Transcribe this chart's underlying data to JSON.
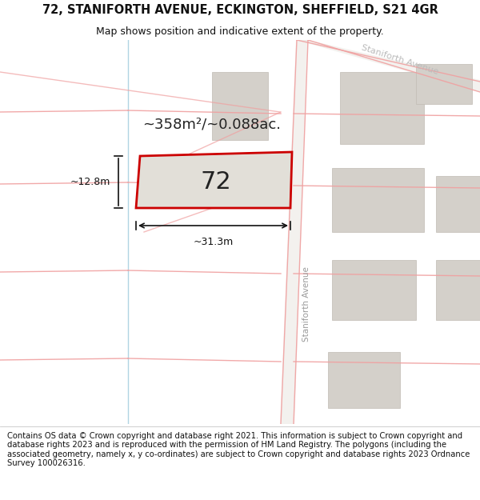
{
  "title": "72, STANIFORTH AVENUE, ECKINGTON, SHEFFIELD, S21 4GR",
  "subtitle": "Map shows position and indicative extent of the property.",
  "footer": "Contains OS data © Crown copyright and database right 2021. This information is subject to Crown copyright and database rights 2023 and is reproduced with the permission of HM Land Registry. The polygons (including the associated geometry, namely x, y co-ordinates) are subject to Crown copyright and database rights 2023 Ordnance Survey 100026316.",
  "area_text": "~358m²/~0.088ac.",
  "dim_width": "~31.3m",
  "dim_height": "~12.8m",
  "property_number": "72",
  "road_label_vert": "Staniforth Avenue",
  "road_label_diag": "Staniforth Avenue",
  "map_bg": "#f7f5f2",
  "road_color": "#f0a0a0",
  "building_color": "#d4d0ca",
  "building_edge": "#c0bbb4",
  "property_fill": "#e2dfd8",
  "property_edge": "#cc0000",
  "title_fontsize": 10.5,
  "subtitle_fontsize": 9,
  "footer_fontsize": 7.2,
  "area_fontsize": 13,
  "number_fontsize": 22,
  "dim_fontsize": 9
}
